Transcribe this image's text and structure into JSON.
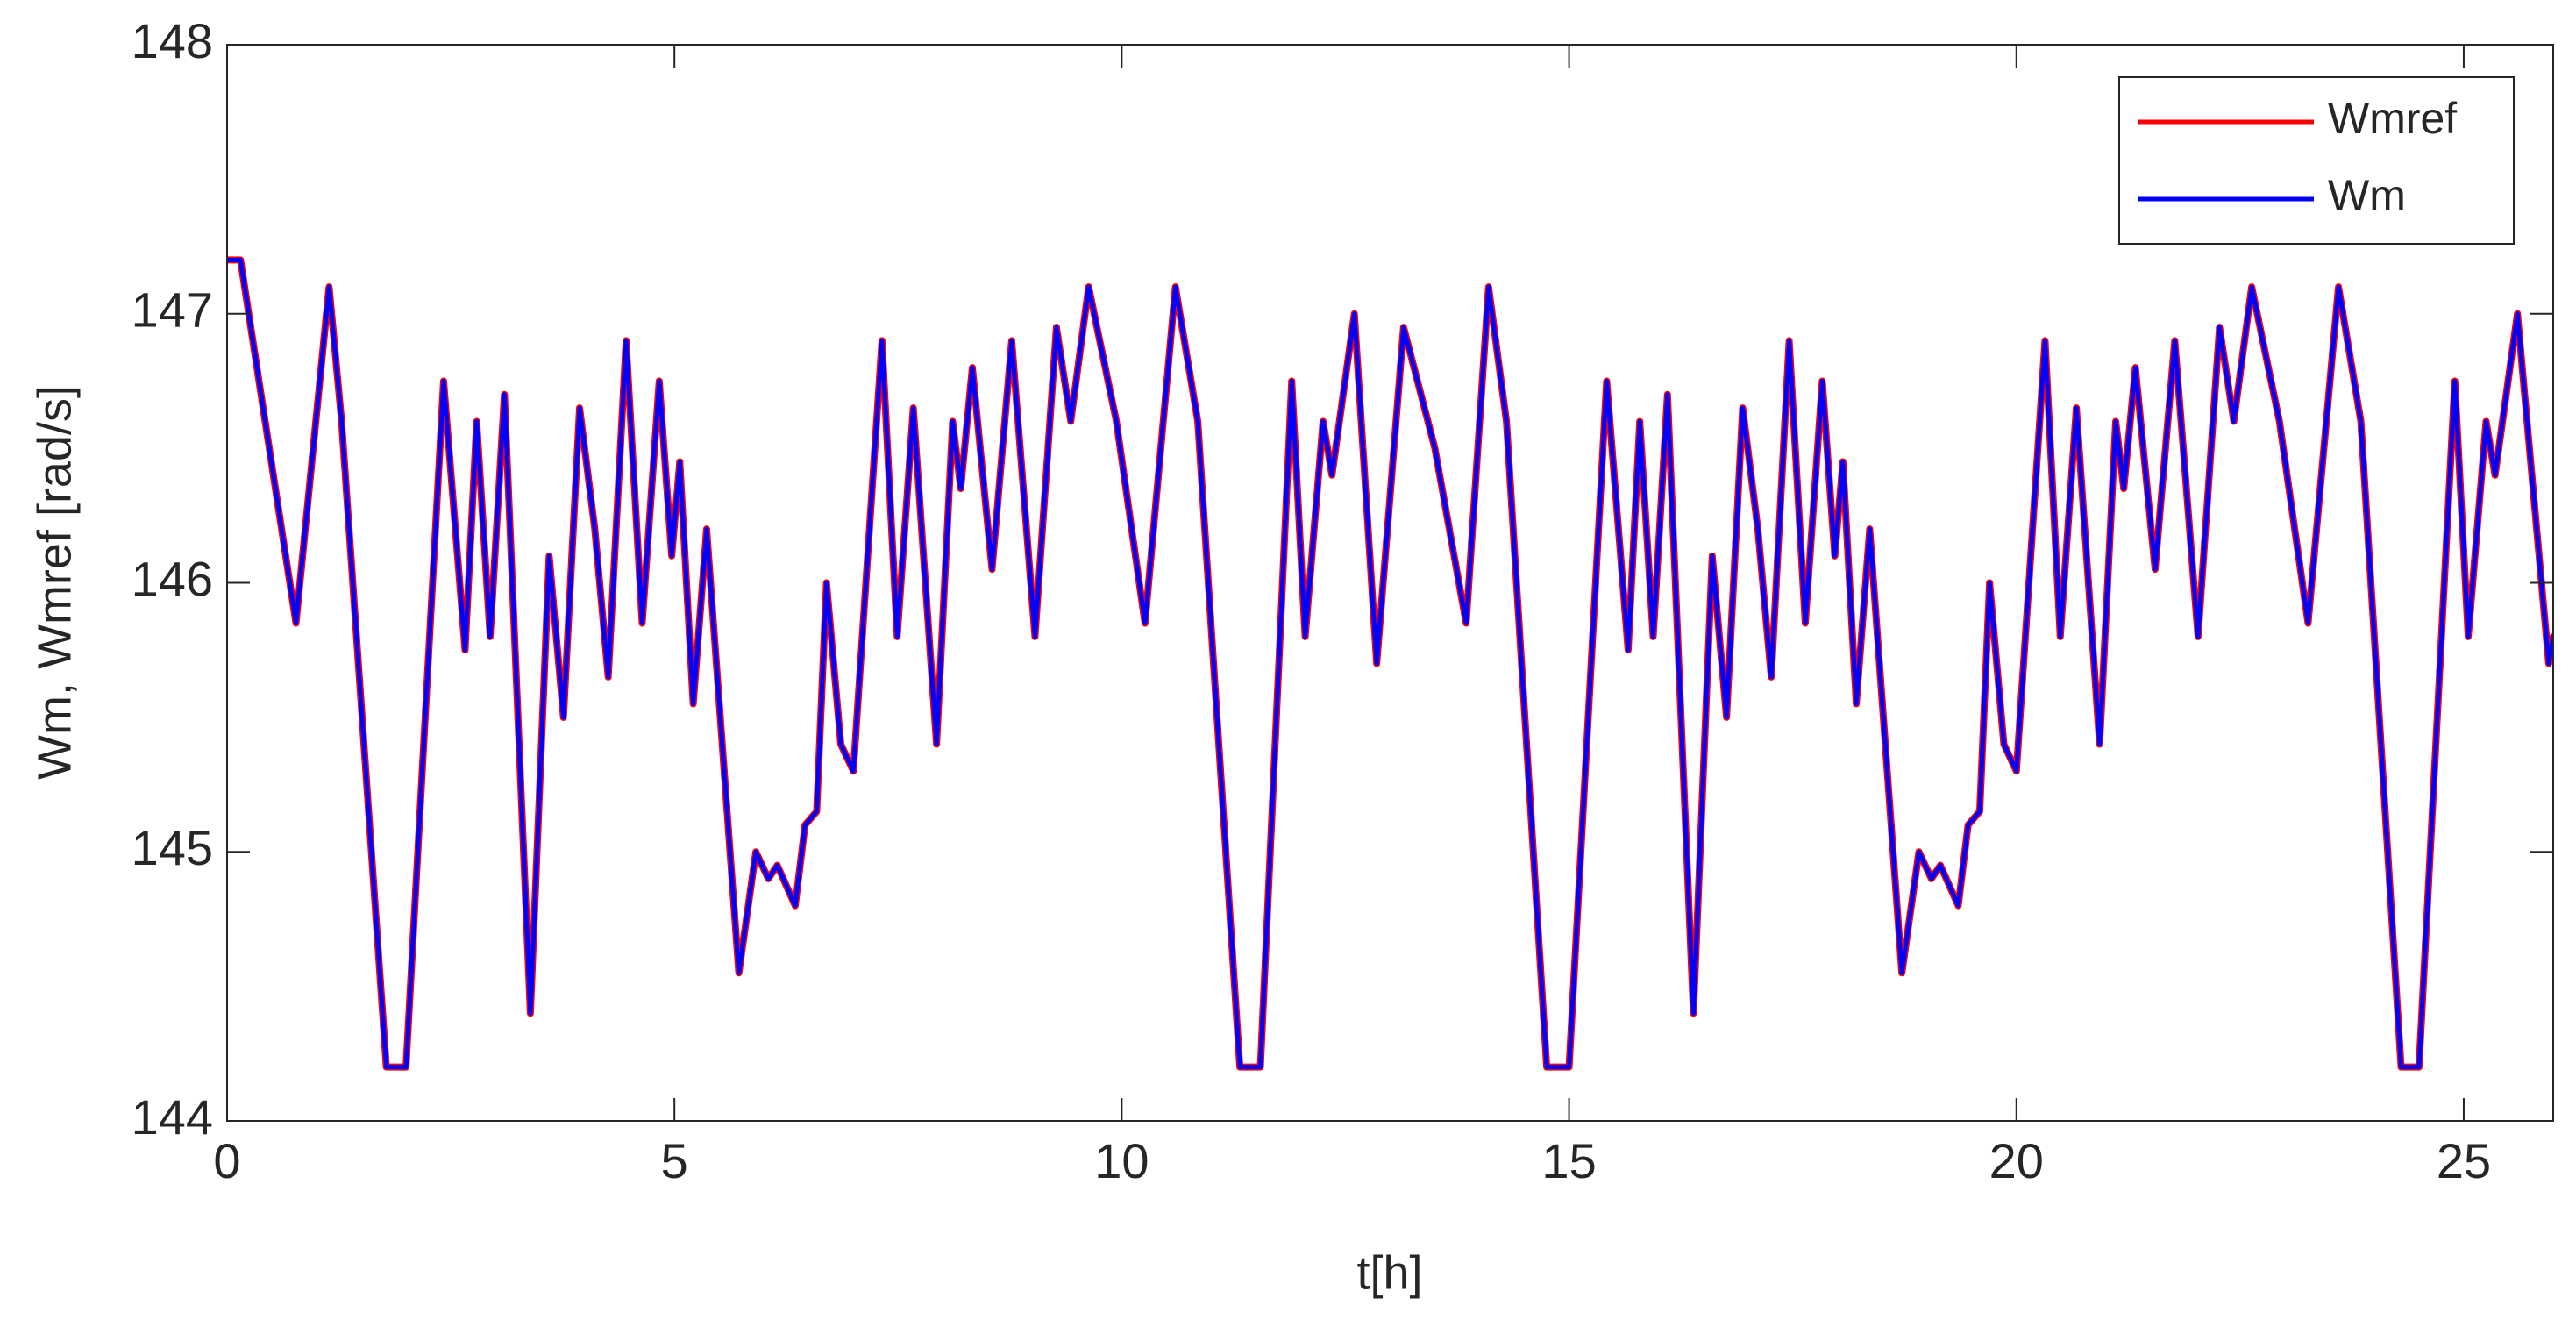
{
  "chart_data": {
    "type": "line",
    "x_label": "t[h]",
    "y_label": "Wm, Wmref [rad/s]",
    "xlim": [
      0,
      26
    ],
    "ylim": [
      144,
      148
    ],
    "xticks": [
      0,
      5,
      10,
      15,
      20,
      25
    ],
    "yticks": [
      144,
      145,
      146,
      147,
      148
    ],
    "grid": false,
    "legend_position": "northeast",
    "x": [
      0,
      0.15,
      0.77,
      1.14,
      1.28,
      1.78,
      2.0,
      2.42,
      2.66,
      2.79,
      2.94,
      3.1,
      3.39,
      3.6,
      3.76,
      3.94,
      4.11,
      4.26,
      4.46,
      4.64,
      4.83,
      4.97,
      5.06,
      5.21,
      5.36,
      5.72,
      5.91,
      6.05,
      6.15,
      6.35,
      6.46,
      6.59,
      6.7,
      6.86,
      7.0,
      7.32,
      7.49,
      7.67,
      7.93,
      8.11,
      8.2,
      8.33,
      8.55,
      8.77,
      9.03,
      9.27,
      9.43,
      9.63,
      9.94,
      10.26,
      10.6,
      10.85,
      11.32,
      11.55,
      11.9,
      12.05,
      12.25,
      12.35,
      12.6,
      12.85,
      13.15,
      13.5,
      13.85,
      14.1,
      14.3,
      14.75,
      15.0,
      15.42,
      15.66,
      15.79,
      15.94,
      16.1,
      16.39,
      16.6,
      16.76,
      16.94,
      17.11,
      17.26,
      17.46,
      17.64,
      17.83,
      17.97,
      18.06,
      18.21,
      18.36,
      18.72,
      18.91,
      19.05,
      19.15,
      19.35,
      19.46,
      19.59,
      19.7,
      19.86,
      20.0,
      20.32,
      20.49,
      20.67,
      20.93,
      21.11,
      21.2,
      21.33,
      21.55,
      21.77,
      22.03,
      22.27,
      22.43,
      22.63,
      22.94,
      23.26,
      23.6,
      23.85,
      24.3,
      24.5,
      24.9,
      25.05,
      25.25,
      25.35,
      25.6,
      25.95,
      26
    ],
    "series": [
      {
        "name": "Wmref",
        "color": "#ff0000",
        "values": [
          147.2,
          147.2,
          145.85,
          147.1,
          146.6,
          144.2,
          144.2,
          146.75,
          145.75,
          146.6,
          145.8,
          146.7,
          144.4,
          146.1,
          145.5,
          146.65,
          146.2,
          145.65,
          146.9,
          145.85,
          146.75,
          146.1,
          146.45,
          145.55,
          146.2,
          144.55,
          145.0,
          144.9,
          144.95,
          144.8,
          145.1,
          145.15,
          146.0,
          145.4,
          145.3,
          146.9,
          145.8,
          146.65,
          145.4,
          146.6,
          146.35,
          146.8,
          146.05,
          146.9,
          145.8,
          146.95,
          146.6,
          147.1,
          146.6,
          145.85,
          147.1,
          146.6,
          144.2,
          144.2,
          146.75,
          145.8,
          146.6,
          146.4,
          147.0,
          145.7,
          146.95,
          146.5,
          145.85,
          147.1,
          146.6,
          144.2,
          144.2,
          146.75,
          145.75,
          146.6,
          145.8,
          146.7,
          144.4,
          146.1,
          145.5,
          146.65,
          146.2,
          145.65,
          146.9,
          145.85,
          146.75,
          146.1,
          146.45,
          145.55,
          146.2,
          144.55,
          145.0,
          144.9,
          144.95,
          144.8,
          145.1,
          145.15,
          146.0,
          145.4,
          145.3,
          146.9,
          145.8,
          146.65,
          145.4,
          146.6,
          146.35,
          146.8,
          146.05,
          146.9,
          145.8,
          146.95,
          146.6,
          147.1,
          146.6,
          145.85,
          147.1,
          146.6,
          144.2,
          144.2,
          146.75,
          145.8,
          146.6,
          146.4,
          147.0,
          145.7,
          145.8
        ]
      },
      {
        "name": "Wm",
        "color": "#0000ff",
        "values": [
          147.2,
          147.2,
          145.85,
          147.1,
          146.6,
          144.2,
          144.2,
          146.75,
          145.75,
          146.6,
          145.8,
          146.7,
          144.4,
          146.1,
          145.5,
          146.65,
          146.2,
          145.65,
          146.9,
          145.85,
          146.75,
          146.1,
          146.45,
          145.55,
          146.2,
          144.55,
          145.0,
          144.9,
          144.95,
          144.8,
          145.1,
          145.15,
          146.0,
          145.4,
          145.3,
          146.9,
          145.8,
          146.65,
          145.4,
          146.6,
          146.35,
          146.8,
          146.05,
          146.9,
          145.8,
          146.95,
          146.6,
          147.1,
          146.6,
          145.85,
          147.1,
          146.6,
          144.2,
          144.2,
          146.75,
          145.8,
          146.6,
          146.4,
          147.0,
          145.7,
          146.95,
          146.5,
          145.85,
          147.1,
          146.6,
          144.2,
          144.2,
          146.75,
          145.75,
          146.6,
          145.8,
          146.7,
          144.4,
          146.1,
          145.5,
          146.65,
          146.2,
          145.65,
          146.9,
          145.85,
          146.75,
          146.1,
          146.45,
          145.55,
          146.2,
          144.55,
          145.0,
          144.9,
          144.95,
          144.8,
          145.1,
          145.15,
          146.0,
          145.4,
          145.3,
          146.9,
          145.8,
          146.65,
          145.4,
          146.6,
          146.35,
          146.8,
          146.05,
          146.9,
          145.8,
          146.95,
          146.6,
          147.1,
          146.6,
          145.85,
          147.1,
          146.6,
          144.2,
          144.2,
          146.75,
          145.8,
          146.6,
          146.4,
          147.0,
          145.7,
          145.8
        ]
      }
    ]
  }
}
